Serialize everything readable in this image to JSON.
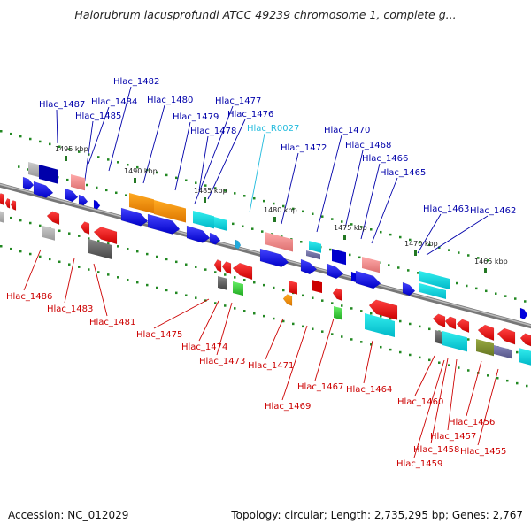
{
  "title": "Halorubrum lacusprofundi ATCC 49239 chromosome 1, complete g...",
  "footer": {
    "accession": "Accession: NC_012029",
    "info": "Topology: circular; Length: 2,735,295 bp; Genes: 2,767"
  },
  "colors": {
    "forward_label": "#0000aa",
    "reverse_label": "#cc0000",
    "rna_label": "#22bbdd",
    "dot_green": "#228822",
    "backbone": "#888888"
  },
  "scale_labels": [
    "1495 kbp",
    "1490 kbp",
    "1485 kbp",
    "1480 kbp",
    "1475 kbp",
    "1470 kbp",
    "1465 kbp"
  ],
  "top_genes": [
    "Hlac_1487",
    "Hlac_1482",
    "Hlac_1484",
    "Hlac_1485",
    "Hlac_1480",
    "Hlac_1477",
    "Hlac_1479",
    "Hlac_1476",
    "Hlac_1478",
    "Hlac_R0027",
    "Hlac_1470",
    "Hlac_1472",
    "Hlac_1468",
    "Hlac_1466",
    "Hlac_1465",
    "Hlac_1463",
    "Hlac_1462"
  ],
  "bottom_genes": [
    "Hlac_1486",
    "Hlac_1483",
    "Hlac_1481",
    "Hlac_1475",
    "Hlac_1474",
    "Hlac_1473",
    "Hlac_1471",
    "Hlac_1469",
    "Hlac_1467",
    "Hlac_1464",
    "Hlac_1460",
    "Hlac_1456",
    "Hlac_1457",
    "Hlac_1458",
    "Hlac_1455",
    "Hlac_1459"
  ]
}
